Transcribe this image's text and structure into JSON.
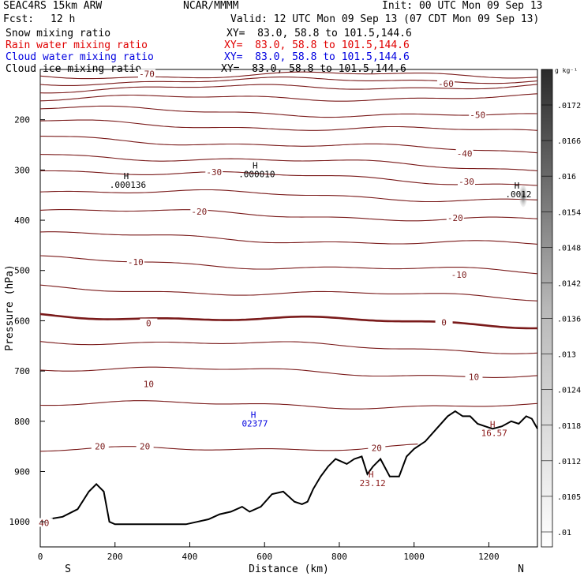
{
  "header": {
    "model": "SEAC4RS 15km ARW",
    "org": "NCAR/MMMM",
    "init": "Init: 00 UTC Mon 09 Sep 13",
    "fcst_label": "Fcst:",
    "fcst_value": "12 h",
    "valid": "Valid: 12 UTC Mon 09 Sep 13 (07 CDT Mon 09 Sep 13)"
  },
  "fields": [
    {
      "name": "Snow mixing ratio",
      "xy": "XY=  83.0, 58.8 to 101.5,144.6",
      "color": "#000000"
    },
    {
      "name": "Rain water mixing ratio",
      "xy": "XY=  83.0, 58.8 to 101.5,144.6",
      "color": "#e00000"
    },
    {
      "name": "Cloud water mixing ratio",
      "xy": "XY=  83.0, 58.8 to 101.5,144.6",
      "color": "#0000e0"
    },
    {
      "name": "Cloud ice mixing ratio",
      "xy": "XY=  83.0, 58.8 to 101.5,144.6",
      "color": "#000000"
    }
  ],
  "chart_data": {
    "type": "contour-cross-section",
    "xlabel": "Distance (km)",
    "ylabel": "Pressure (hPa)",
    "xlim": [
      0,
      1330
    ],
    "ylim": [
      1050,
      100
    ],
    "x_ticks": [
      "0",
      "200",
      "400",
      "600",
      "800",
      "1000",
      "1200"
    ],
    "y_ticks": [
      "200",
      "300",
      "400",
      "500",
      "600",
      "700",
      "800",
      "900",
      "1000"
    ],
    "endpoints": {
      "left": "S",
      "right": "N"
    },
    "colorbar_unit": "g kg⁻¹",
    "colorbar_ticks": [
      ".0172",
      ".0166",
      ".016",
      ".0154",
      ".0148",
      ".0142",
      ".0136",
      ".013",
      ".0124",
      ".0118",
      ".0112",
      ".0105",
      ".01"
    ],
    "temperature_labels": [
      {
        "text": "-70",
        "x": 285,
        "p": 109
      },
      {
        "text": "-60",
        "x": 1085,
        "p": 128
      },
      {
        "text": "-50",
        "x": 1170,
        "p": 190
      },
      {
        "text": "-40",
        "x": 1135,
        "p": 267
      },
      {
        "text": "-30",
        "x": 465,
        "p": 304
      },
      {
        "text": "-30",
        "x": 1140,
        "p": 323
      },
      {
        "text": "-20",
        "x": 425,
        "p": 383
      },
      {
        "text": "-20",
        "x": 1110,
        "p": 395
      },
      {
        "text": "-10",
        "x": 255,
        "p": 483
      },
      {
        "text": "-10",
        "x": 1120,
        "p": 508
      },
      {
        "text": "0",
        "x": 290,
        "p": 605
      },
      {
        "text": "0",
        "x": 1080,
        "p": 603
      },
      {
        "text": "10",
        "x": 290,
        "p": 726
      },
      {
        "text": "10",
        "x": 1160,
        "p": 712
      },
      {
        "text": "20",
        "x": 160,
        "p": 850
      },
      {
        "text": "20",
        "x": 280,
        "p": 850
      },
      {
        "text": "20",
        "x": 900,
        "p": 853
      },
      {
        "text": "40",
        "x": 10,
        "p": 1002
      }
    ],
    "extrema": [
      {
        "mark": "H",
        "value": ".000136",
        "x": 230,
        "p": 318,
        "color": "#000000"
      },
      {
        "mark": "H",
        "value": ".000010",
        "x": 575,
        "p": 297,
        "color": "#000000"
      },
      {
        "mark": "H",
        "value": ".0012",
        "x": 1275,
        "p": 337,
        "color": "#000000"
      },
      {
        "mark": "H",
        "value": "02377",
        "x": 570,
        "p": 793,
        "color": "#0000e0"
      },
      {
        "mark": "H",
        "value": "23.12",
        "x": 885,
        "p": 912,
        "color": "#8b1a1a"
      },
      {
        "mark": "H",
        "value": "16.57",
        "x": 1210,
        "p": 812,
        "color": "#8b1a1a"
      }
    ],
    "terrain": {
      "x": [
        0,
        20,
        60,
        100,
        130,
        150,
        170,
        185,
        200,
        240,
        300,
        350,
        390,
        420,
        450,
        480,
        510,
        540,
        560,
        590,
        620,
        650,
        680,
        700,
        715,
        730,
        750,
        770,
        790,
        805,
        820,
        840,
        860,
        875,
        890,
        910,
        935,
        960,
        980,
        1000,
        1030,
        1060,
        1090,
        1110,
        1130,
        1150,
        1170,
        1190,
        1210,
        1235,
        1260,
        1280,
        1300,
        1315,
        1330
      ],
      "p": [
        1000,
        995,
        990,
        975,
        940,
        925,
        940,
        1000,
        1005,
        1005,
        1005,
        1005,
        1005,
        1000,
        995,
        985,
        980,
        970,
        980,
        970,
        945,
        940,
        960,
        965,
        960,
        935,
        910,
        890,
        875,
        880,
        885,
        875,
        870,
        905,
        890,
        875,
        910,
        910,
        870,
        855,
        840,
        815,
        790,
        780,
        790,
        790,
        805,
        810,
        815,
        810,
        800,
        805,
        790,
        795,
        815
      ]
    },
    "isotherms": [
      {
        "label": -70,
        "bold": false,
        "p_left": 113,
        "p_right": 110
      },
      {
        "label": -65,
        "bold": false,
        "p_left": 125,
        "p_right": 120
      },
      {
        "label": -60,
        "bold": false,
        "p_left": 140,
        "p_right": 132
      },
      {
        "label": -55,
        "bold": false,
        "p_left": 158,
        "p_right": 155
      },
      {
        "label": -50,
        "bold": false,
        "p_left": 178,
        "p_right": 195
      },
      {
        "label": -45,
        "bold": false,
        "p_left": 205,
        "p_right": 225
      },
      {
        "label": -40,
        "bold": false,
        "p_left": 235,
        "p_right": 265
      },
      {
        "label": -35,
        "bold": false,
        "p_left": 268,
        "p_right": 298
      },
      {
        "label": -30,
        "bold": false,
        "p_left": 298,
        "p_right": 328
      },
      {
        "label": -25,
        "bold": false,
        "p_left": 340,
        "p_right": 360
      },
      {
        "label": -20,
        "bold": false,
        "p_left": 380,
        "p_right": 400
      },
      {
        "label": -15,
        "bold": false,
        "p_left": 428,
        "p_right": 450
      },
      {
        "label": -10,
        "bold": false,
        "p_left": 478,
        "p_right": 505
      },
      {
        "label": -5,
        "bold": false,
        "p_left": 535,
        "p_right": 555
      },
      {
        "label": 0,
        "bold": true,
        "p_left": 588,
        "p_right": 608
      },
      {
        "label": 5,
        "bold": false,
        "p_left": 638,
        "p_right": 660
      },
      {
        "label": 10,
        "bold": false,
        "p_left": 693,
        "p_right": 710
      },
      {
        "label": 15,
        "bold": false,
        "p_left": 765,
        "p_right": 770
      },
      {
        "label": 20,
        "bold": false,
        "p_left": 860,
        "p_right": 845
      }
    ]
  }
}
